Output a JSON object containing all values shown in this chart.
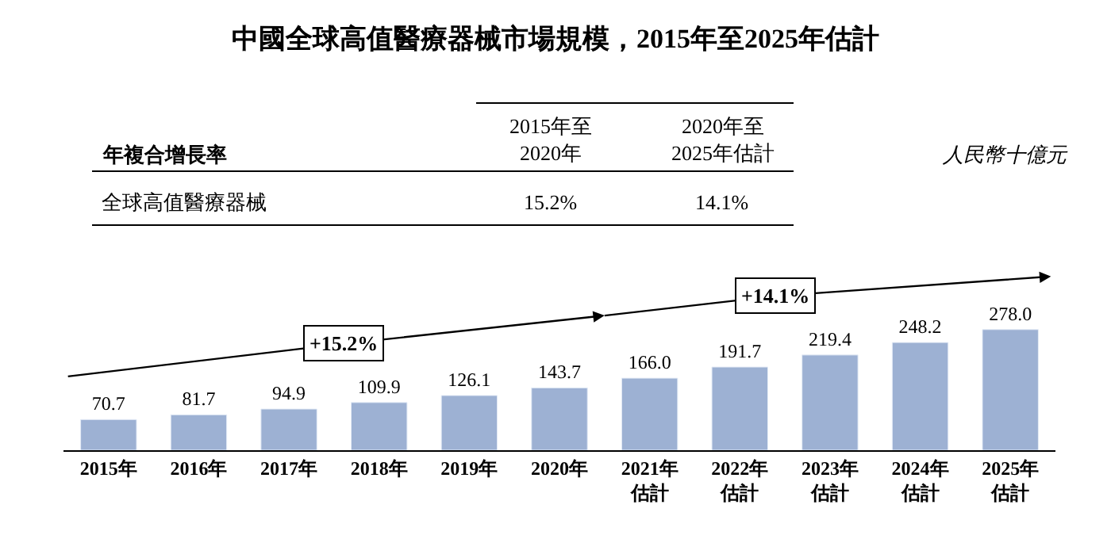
{
  "chart_data": {
    "type": "bar",
    "title": "中國全球高值醫療器械市場規模，2015年至2025年估計",
    "categories": [
      "2015年",
      "2016年",
      "2017年",
      "2018年",
      "2019年",
      "2020年",
      "2021年估計",
      "2022年估計",
      "2023年估計",
      "2024年估計",
      "2025年估計"
    ],
    "values": [
      70.7,
      81.7,
      94.9,
      109.9,
      126.1,
      143.7,
      166.0,
      191.7,
      219.4,
      248.2,
      278.0
    ],
    "value_labels": [
      "70.7",
      "81.7",
      "94.9",
      "109.9",
      "126.1",
      "143.7",
      "166.0",
      "191.7",
      "219.4",
      "248.2",
      "278.0"
    ],
    "color": "#9db1d3",
    "annotations": [
      "年複合增長率",
      "2015年至\n2020年",
      "2020年至\n2025年估計",
      "人民幣十億元",
      "全球高值醫療器械",
      "15.2%",
      "14.1%",
      "+15.2%",
      "+14.1%"
    ],
    "legend": false
  }
}
